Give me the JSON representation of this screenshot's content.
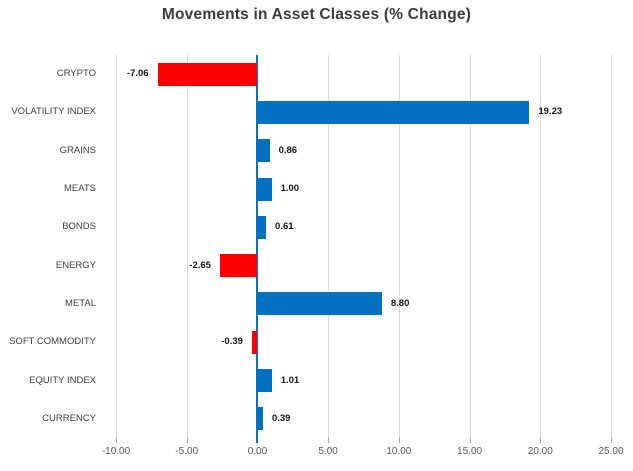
{
  "chart_data": {
    "type": "bar",
    "orientation": "horizontal",
    "title": "Movements in Asset Classes (% Change)",
    "categories": [
      "CRYPTO",
      "VOLATILITY INDEX",
      "GRAINS",
      "MEATS",
      "BONDS",
      "ENERGY",
      "METAL",
      "SOFT COMMODITY",
      "EQUITY INDEX",
      "CURRENCY"
    ],
    "values": [
      -7.06,
      19.23,
      0.86,
      1.0,
      0.61,
      -2.65,
      8.8,
      -0.39,
      1.01,
      0.39
    ],
    "value_labels": [
      "-7.06",
      "19.23",
      "0.86",
      "1.00",
      "0.61",
      "-2.65",
      "8.80",
      "-0.39",
      "1.01",
      "0.39"
    ],
    "xlabel": "",
    "ylabel": "",
    "xlim": [
      -10,
      25
    ],
    "x_ticks": [
      -10,
      -5,
      0,
      5,
      10,
      15,
      20,
      25
    ],
    "x_tick_labels": [
      "-10.00",
      "-5.00",
      "0.00",
      "5.00",
      "10.00",
      "15.00",
      "20.00",
      "25.00"
    ],
    "grid": true,
    "legend": false,
    "colors": {
      "positive": "#0070C0",
      "negative": "#FF0000",
      "gridline": "#D9D9D9",
      "tick": "#A6A6A6",
      "zero_line": "#0070C0",
      "title": "#3B3B3B",
      "category_label": "#404040",
      "value_label": "#151515",
      "axis_label": "#595959",
      "background": "#FFFFFF"
    }
  }
}
